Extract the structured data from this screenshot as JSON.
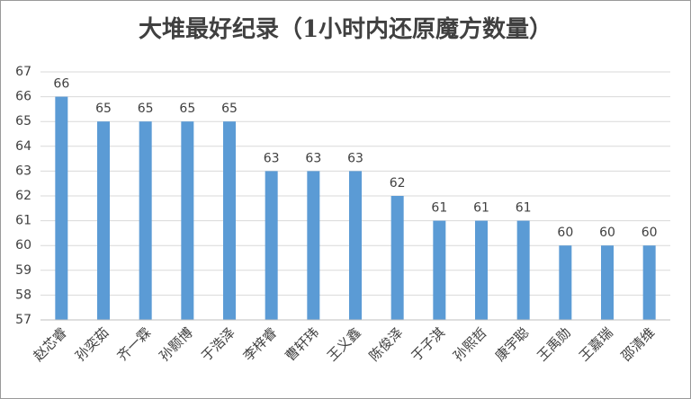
{
  "chart_data": {
    "type": "bar",
    "title": "大堆最好纪录（1小时内还原魔方数量）",
    "categories": [
      "赵芯睿",
      "孙奕茹",
      "齐一霖",
      "孙颢博",
      "于浩泽",
      "李梓睿",
      "曹轩玮",
      "王义鑫",
      "陈俊泽",
      "于子淇",
      "孙熙哲",
      "康宇聪",
      "王禹勋",
      "王嘉瑞",
      "邵清维"
    ],
    "values": [
      66,
      65,
      65,
      65,
      65,
      63,
      63,
      63,
      62,
      61,
      61,
      61,
      60,
      60,
      60
    ],
    "color": "#5b9bd5",
    "ylim": [
      57,
      67
    ],
    "yticks": [
      57,
      58,
      59,
      60,
      61,
      62,
      63,
      64,
      65,
      66,
      67
    ],
    "grid": true
  }
}
